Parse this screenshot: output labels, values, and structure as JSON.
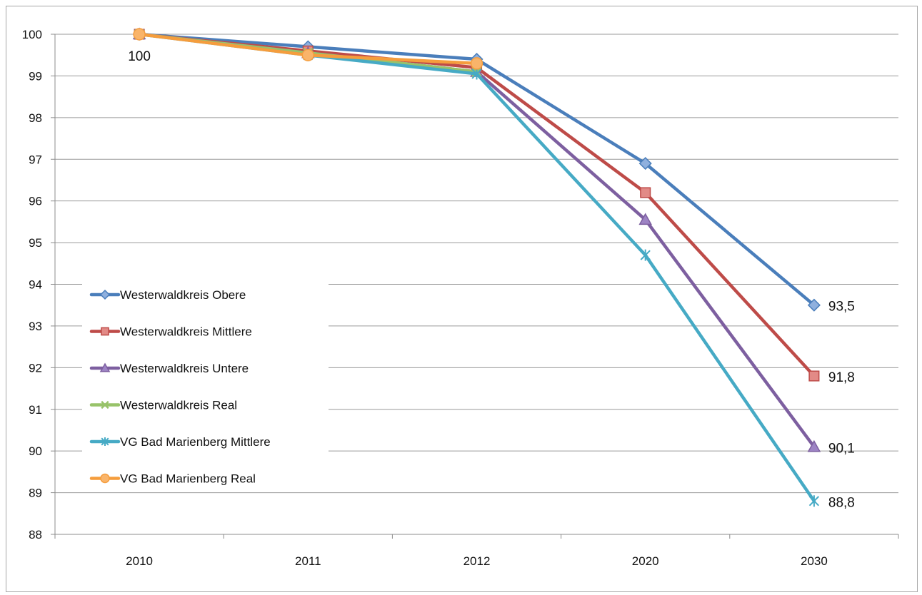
{
  "chart_data": {
    "type": "line",
    "title": "",
    "xlabel": "",
    "ylabel": "",
    "categories": [
      "2010",
      "2011",
      "2012",
      "2020",
      "2030"
    ],
    "ylim": [
      88,
      100
    ],
    "yticks": [
      88,
      89,
      90,
      91,
      92,
      93,
      94,
      95,
      96,
      97,
      98,
      99,
      100
    ],
    "grid": true,
    "legend_position": "left",
    "series": [
      {
        "name": "Westerwaldkreis Obere",
        "values": [
          100,
          99.7,
          99.4,
          96.9,
          93.5
        ],
        "color": "#4a7ebb",
        "marker": "diamond"
      },
      {
        "name": "Westerwaldkreis Mittlere",
        "values": [
          100,
          99.6,
          99.2,
          96.2,
          91.8
        ],
        "color": "#be4b48",
        "marker": "square"
      },
      {
        "name": "Westerwaldkreis Untere",
        "values": [
          100,
          99.55,
          99.1,
          95.55,
          90.1
        ],
        "color": "#7d5fa0",
        "marker": "triangle"
      },
      {
        "name": "Westerwaldkreis Real",
        "values": [
          100,
          99.55,
          99.1,
          null,
          null
        ],
        "color": "#98c36a",
        "marker": "x"
      },
      {
        "name": "VG Bad Marienberg Mittlere",
        "values": [
          100,
          99.5,
          99.05,
          94.7,
          88.8
        ],
        "color": "#46aac5",
        "marker": "star"
      },
      {
        "name": "VG Bad Marienberg Real",
        "values": [
          100,
          99.5,
          99.3,
          null,
          null
        ],
        "color": "#f59d3d",
        "marker": "circle"
      }
    ],
    "data_labels": [
      {
        "series": 0,
        "index": 0,
        "text": "100",
        "position": "below"
      },
      {
        "series": 0,
        "index": 4,
        "text": "93,5",
        "position": "right"
      },
      {
        "series": 1,
        "index": 4,
        "text": "91,8",
        "position": "right"
      },
      {
        "series": 2,
        "index": 4,
        "text": "90,1",
        "position": "right"
      },
      {
        "series": 4,
        "index": 4,
        "text": "88,8",
        "position": "right"
      }
    ]
  }
}
